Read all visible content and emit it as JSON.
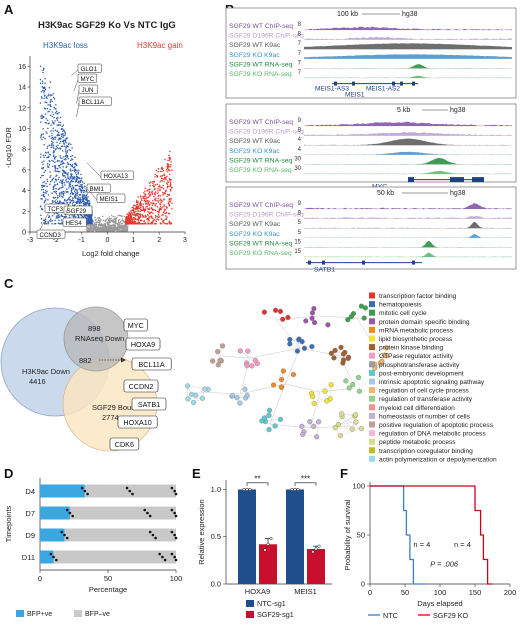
{
  "panel_labels": {
    "a": "A",
    "b": "B",
    "c": "C",
    "d": "D",
    "e": "E",
    "f": "F"
  },
  "panel_a": {
    "title": "H3K9ac SGF29 Ko Vs NTC IgG",
    "loss_label": "H3K9ac loss",
    "gain_label": "H3K9ac gain",
    "xlabel": "Log2 fold change",
    "ylabel": "-Log10 FDR",
    "colors": {
      "loss": "#2f5fb3",
      "gain": "#e23a2e",
      "ns": "#9a9a9a"
    },
    "genes": [
      "GLO1",
      "MYC",
      "JUN",
      "BCL11A",
      "HOXA13",
      "BMI1",
      "MEIS1",
      "TCF3",
      "SGF29",
      "HES4",
      "CCND3"
    ]
  },
  "panel_b": {
    "blocks": [
      {
        "scale": "100 kb",
        "assembly": "hg38",
        "tracks": [
          {
            "name": "SGF29 WT ChIP-seq",
            "max": "8",
            "color": "#7a4fa3"
          },
          {
            "name": "SGF29 D196R ChIP-seq",
            "max": "8",
            "color": "#b79ad3"
          },
          {
            "name": "SGF29 WT K9ac",
            "max": "7",
            "color": "#555555"
          },
          {
            "name": "SGF29 KO K9ac",
            "max": "7",
            "color": "#3a8fd0"
          },
          {
            "name": "SGF29 WT RNA-seq",
            "max": "7",
            "color": "#1e8a3a"
          },
          {
            "name": "SGF29 KO RNA-seq",
            "max": "7",
            "color": "#5cb46a"
          }
        ],
        "genes": [
          "MEIS1-AS3",
          "MEIS1-AS2",
          "MEIS1"
        ]
      },
      {
        "scale": "5 kb",
        "assembly": "hg38",
        "tracks": [
          {
            "name": "SGF29 WT ChIP-seq",
            "max": "9",
            "color": "#7a4fa3"
          },
          {
            "name": "SGF29 D196R ChIP-seq",
            "max": "9",
            "color": "#b79ad3"
          },
          {
            "name": "SGF29 WT K9ac",
            "max": "4",
            "color": "#555555"
          },
          {
            "name": "SGF29 KO K9ac",
            "max": "4",
            "color": "#3a8fd0"
          },
          {
            "name": "SGF29 WT RNA-seq",
            "max": "30",
            "color": "#1e8a3a"
          },
          {
            "name": "SGF29 KO RNA-seq",
            "max": "30",
            "color": "#5cb46a"
          }
        ],
        "genes": [
          "MYC"
        ]
      },
      {
        "scale": "50 kb",
        "assembly": "hg38",
        "tracks": [
          {
            "name": "SGF29 WT ChIP-seq",
            "max": "9",
            "color": "#7a4fa3"
          },
          {
            "name": "SGF29 D196R ChIP-seq",
            "max": "9",
            "color": "#b79ad3"
          },
          {
            "name": "SGF29 WT K9ac",
            "max": "5",
            "color": "#555555"
          },
          {
            "name": "SGF29 KO K9ac",
            "max": "5",
            "color": "#3a8fd0"
          },
          {
            "name": "SGF29 WT RNA-seq",
            "max": "15",
            "color": "#1e8a3a"
          },
          {
            "name": "SGF29 KO RNA-seq",
            "max": "15",
            "color": "#5cb46a"
          }
        ],
        "genes": [
          "SATB1"
        ]
      }
    ]
  },
  "panel_c": {
    "venn": {
      "a_label": "H3K9ac Down",
      "a_count": "4416",
      "b_count": "898",
      "b_label1": "RNAseq Down",
      "c_label": "SGF29 Bound",
      "c_count": "2774",
      "center": "882"
    },
    "genes": [
      "MYC",
      "HOXA9",
      "BCL11A",
      "CCDN2",
      "SATB1",
      "HOXA10",
      "CDK6"
    ],
    "legend": [
      {
        "label": "transcription factor binding",
        "color": "#e3332c"
      },
      {
        "label": "hematopoiesis",
        "color": "#3a6fb5"
      },
      {
        "label": "mitotic cell cycle",
        "color": "#3aa14a"
      },
      {
        "label": "protein domain specific binding",
        "color": "#9b56a6"
      },
      {
        "label": "mRNA metabolic process",
        "color": "#f08a24"
      },
      {
        "label": "lipid biosynthetic process",
        "color": "#f4e23a"
      },
      {
        "label": "protein kinase binding",
        "color": "#a45d2e"
      },
      {
        "label": "GTPase regulator activity",
        "color": "#f29ac4"
      },
      {
        "label": "phosphotransferase activity",
        "color": "#9c9c9c"
      },
      {
        "label": "post-embryonic development",
        "color": "#5fc9d0"
      },
      {
        "label": "intrinsic apoptotic signaling pathway",
        "color": "#a7c8e8"
      },
      {
        "label": "regulation of cell cycle process",
        "color": "#f5b46a"
      },
      {
        "label": "regulation of transferase activity",
        "color": "#90d38a"
      },
      {
        "label": "myeloid cell differentiation",
        "color": "#f49090"
      },
      {
        "label": "homeostasis of number of cells",
        "color": "#c5b0d5"
      },
      {
        "label": "positive regulation of apoptotic process",
        "color": "#c49c94"
      },
      {
        "label": "regulation of DNA metabolic process",
        "color": "#f7b6d2"
      },
      {
        "label": "peptide metabolic process",
        "color": "#dbdb8d"
      },
      {
        "label": "transcription coregulator binding",
        "color": "#bcbd22"
      },
      {
        "label": "actin polymerization or depolymerization",
        "color": "#9edae5"
      }
    ]
  },
  "chart_data": [
    {
      "panel": "D",
      "type": "bar",
      "orientation": "horizontal",
      "stacked": true,
      "categories": [
        "D4",
        "D7",
        "D9",
        "D11"
      ],
      "series": [
        {
          "name": "BFP+ve",
          "values": [
            33,
            22,
            18,
            10
          ],
          "color": "#3aa7e0"
        },
        {
          "name": "BFP–ve",
          "values": [
            67,
            78,
            82,
            90
          ],
          "color": "#c8c8c8"
        }
      ],
      "points": [
        [
          31,
          33,
          35,
          64,
          66,
          68,
          97,
          99,
          100
        ],
        [
          20,
          22,
          24,
          77,
          79,
          81,
          97,
          99,
          100
        ],
        [
          16,
          18,
          20,
          81,
          83,
          85,
          97,
          99,
          100
        ],
        [
          8,
          10,
          12,
          88,
          90,
          92,
          97,
          99,
          100
        ]
      ],
      "xlabel": "Percentage",
      "ylabel": "Timepoints",
      "xlim": [
        0,
        100
      ],
      "xticks": [
        "0",
        "50",
        "100"
      ]
    },
    {
      "panel": "E",
      "type": "bar",
      "categories": [
        "HOXA9",
        "MEIS1"
      ],
      "series": [
        {
          "name": "NTC-sg1",
          "values": [
            1.0,
            1.0
          ],
          "errors": [
            0.0,
            0.0
          ],
          "color": "#1f4e8c"
        },
        {
          "name": "SGF29-sg1",
          "values": [
            0.42,
            0.37
          ],
          "errors": [
            0.06,
            0.03
          ],
          "color": "#c8102e"
        }
      ],
      "points": [
        [
          1.0,
          1.0,
          1.0
        ],
        [
          0.36,
          0.42,
          0.48
        ],
        [
          1.0,
          1.0,
          1.0
        ],
        [
          0.34,
          0.37,
          0.4
        ]
      ],
      "significance": [
        "**",
        "***"
      ],
      "ylabel": "Relative expression",
      "ylim": [
        0,
        1.1
      ],
      "yticks": [
        "0.0",
        "0.5",
        "1.0"
      ]
    },
    {
      "panel": "F",
      "type": "line",
      "series": [
        {
          "name": "NTC",
          "color": "#3a7fc9",
          "x": [
            0,
            48,
            48,
            52,
            52,
            57,
            57,
            62,
            62,
            80
          ],
          "y": [
            100,
            100,
            75,
            75,
            50,
            50,
            25,
            25,
            0,
            0
          ]
        },
        {
          "name": "SGF29 KO",
          "color": "#d0021b",
          "x": [
            0,
            150,
            150,
            158,
            158,
            162,
            162,
            168,
            168,
            175
          ],
          "y": [
            100,
            100,
            75,
            75,
            50,
            50,
            25,
            25,
            0,
            0
          ]
        }
      ],
      "annotations": [
        "n = 4",
        "n = 4",
        "P = .006"
      ],
      "xlabel": "Days elapsed",
      "ylabel": "Probability of survival",
      "xlim": [
        0,
        200
      ],
      "ylim": [
        0,
        100
      ],
      "xticks": [
        "0",
        "50",
        "100",
        "150",
        "200"
      ],
      "yticks": [
        "0",
        "50",
        "100"
      ]
    }
  ]
}
